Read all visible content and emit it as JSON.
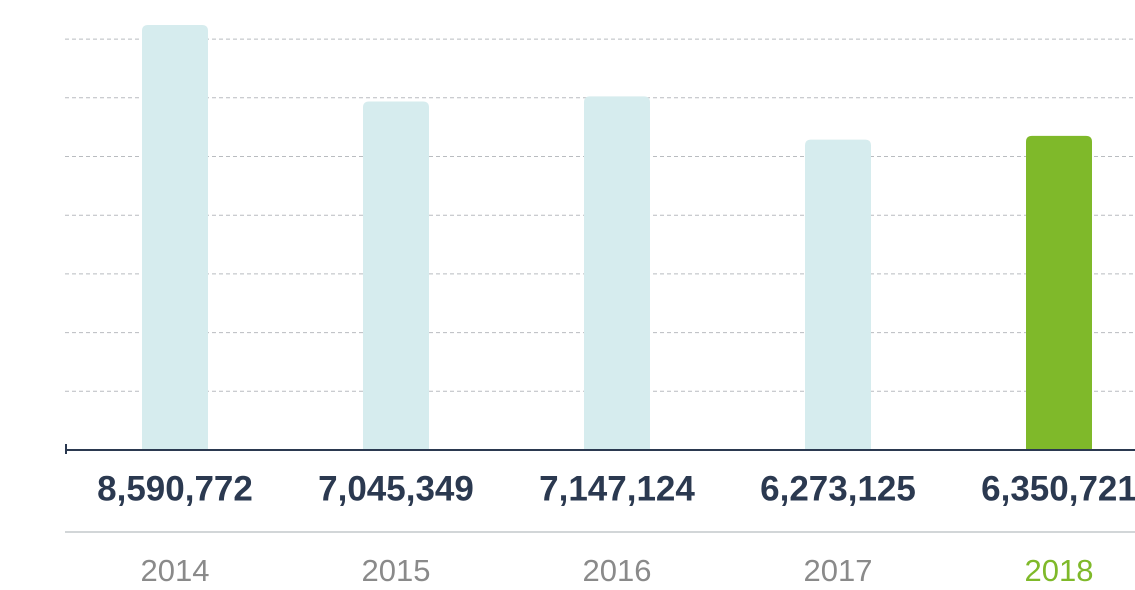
{
  "chart_data": {
    "type": "bar",
    "categories": [
      "2014",
      "2015",
      "2016",
      "2017",
      "2018"
    ],
    "values": [
      8590772,
      7045349,
      7147124,
      6273125,
      6350721
    ],
    "value_labels": [
      "8,590,772",
      "7,045,349",
      "7,147,124",
      "6,273,125",
      "6,350,721"
    ],
    "colors": [
      "#d6ecee",
      "#d6ecee",
      "#d6ecee",
      "#d6ecee",
      "#7fb92a"
    ],
    "label_colors": [
      "#8a8a8a",
      "#8a8a8a",
      "#8a8a8a",
      "#8a8a8a",
      "#7fb92a"
    ],
    "grid": true
  }
}
